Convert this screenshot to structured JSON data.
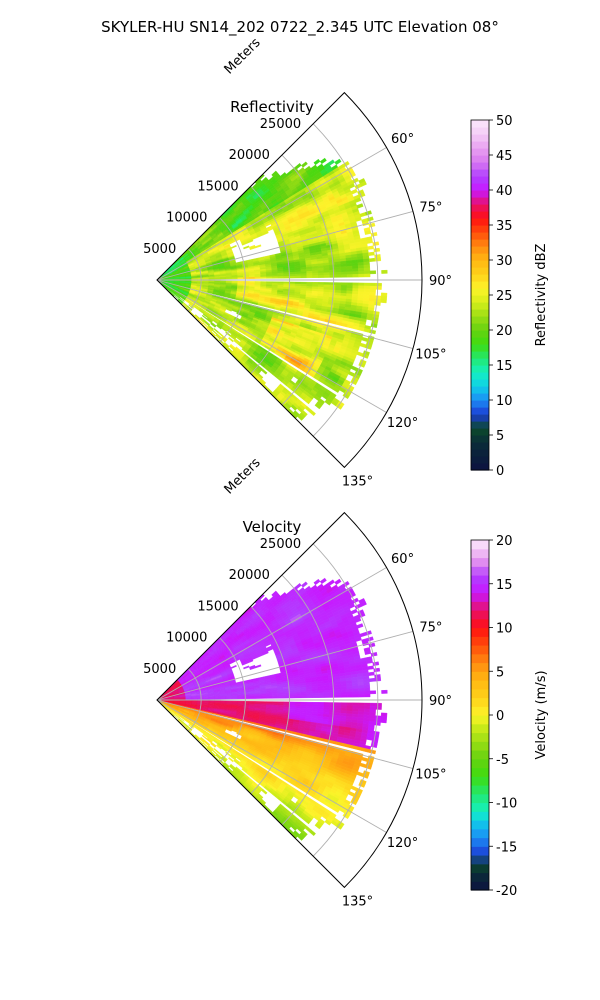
{
  "figure": {
    "title": "SKYLER-HU  SN14_202  0722_2.345 UTC Elevation 08°"
  },
  "chart_data": [
    {
      "type": "heatmap",
      "projection": "polar-sector",
      "title": "Reflectivity",
      "radial_label": "Meters",
      "radial_ticks": [
        5000,
        10000,
        15000,
        20000,
        25000
      ],
      "radial_range": [
        0,
        30000
      ],
      "angle_ticks": [
        "60°",
        "75°",
        "90°",
        "105°",
        "120°",
        "135°"
      ],
      "angle_range_deg": [
        45,
        135
      ],
      "grid": true,
      "colorbar": {
        "label": "Reflectivity dBZ",
        "min": 0,
        "max": 50,
        "ticks": [
          0,
          5,
          10,
          15,
          20,
          25,
          30,
          35,
          40,
          45,
          50
        ],
        "colormap": "NWSRef"
      },
      "field_summary": {
        "dominant_range_dbz": [
          15,
          30
        ],
        "peak_dbz": 37,
        "no_data_gaps_deg": [
          90,
          104,
          122,
          130
        ]
      }
    },
    {
      "type": "heatmap",
      "projection": "polar-sector",
      "title": "Velocity",
      "radial_label": "Meters",
      "radial_ticks": [
        5000,
        10000,
        15000,
        20000,
        25000
      ],
      "radial_range": [
        0,
        30000
      ],
      "angle_ticks": [
        "60°",
        "75°",
        "90°",
        "105°",
        "120°",
        "135°"
      ],
      "angle_range_deg": [
        45,
        135
      ],
      "grid": true,
      "colorbar": {
        "label": "Velocity (m/s)",
        "min": -20,
        "max": 20,
        "ticks": [
          -20,
          -15,
          -10,
          -5,
          0,
          5,
          10,
          15,
          20
        ],
        "colormap": "NWSVel"
      },
      "field_summary": {
        "north_of_90_deg_ms": 15,
        "south_of_90_near_ms": 10,
        "south_far_ms": 0
      }
    }
  ]
}
